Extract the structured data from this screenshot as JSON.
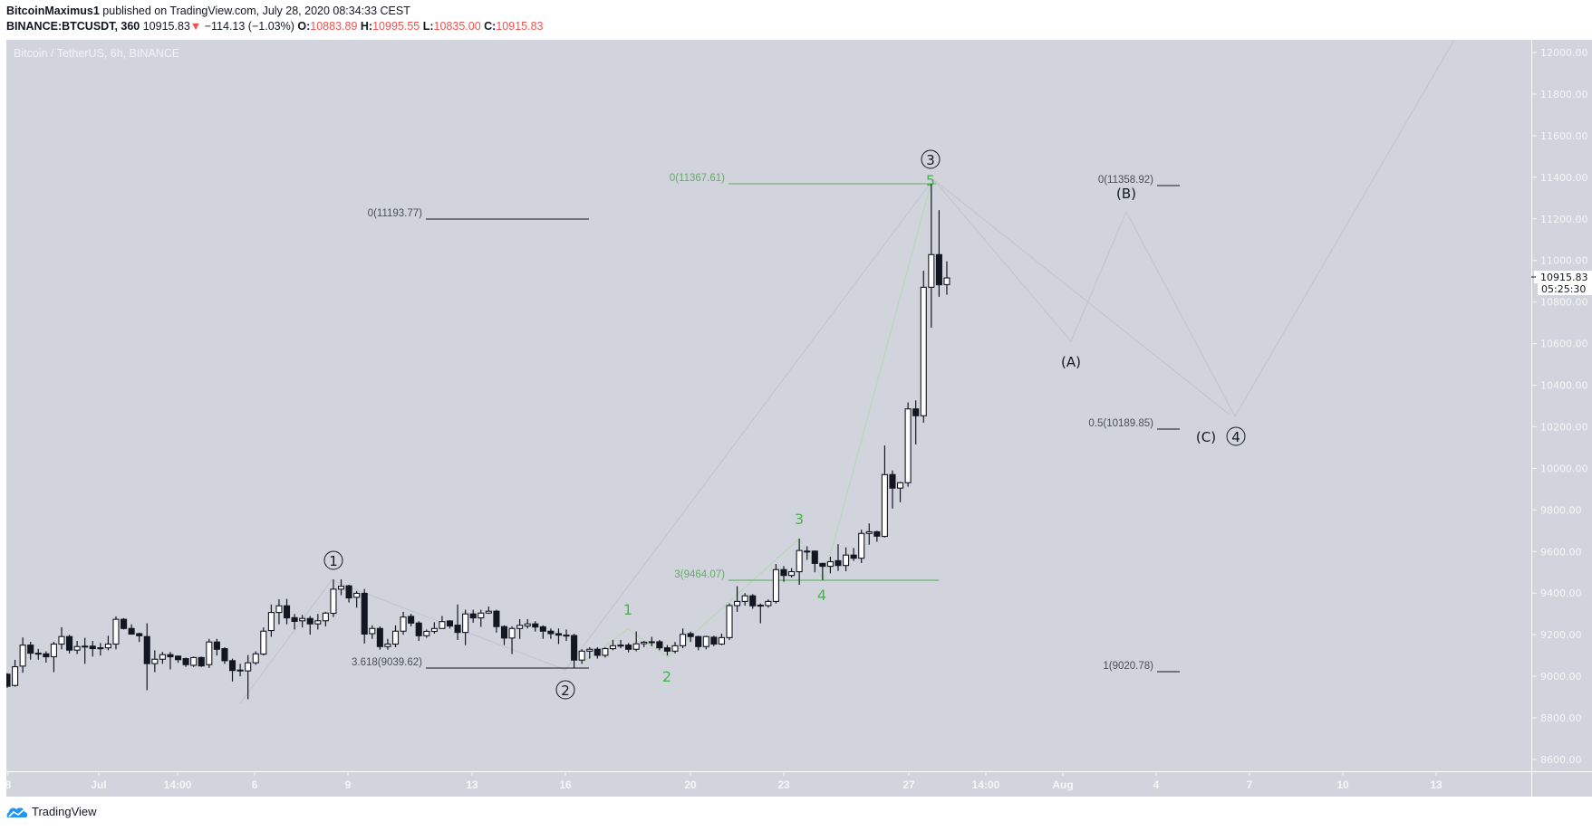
{
  "header": {
    "author": "BitcoinMaximus1",
    "published": "published on TradingView.com, July 28, 2020 08:34:33 CEST",
    "symbol": "BINANCE:BTCUSDT, 360",
    "last": "10915.83",
    "down_arrow": "▼",
    "change": "−114.13 (−1.03%)",
    "o_label": "O:",
    "o": "10883.89",
    "h_label": "H:",
    "h": "10995.55",
    "l_label": "L:",
    "l": "10835.00",
    "c_label": "C:",
    "c": "10915.83"
  },
  "chart_title": "Bitcoin / TetherUS, 6h, BINANCE",
  "footer": {
    "brand": "TradingView",
    "logo_icon": "tradingview-cloud-icon"
  },
  "colors": {
    "background": "#d1d4dc",
    "up": "#ffffff",
    "down": "#131722",
    "fib_green": "#4caf50",
    "wave_line": "#c3c6ce",
    "price_down": "#ef5350"
  },
  "price_axis": {
    "ticks": [
      "12000.00",
      "11800.00",
      "11600.00",
      "11400.00",
      "11200.00",
      "11000.00",
      "10800.00",
      "10600.00",
      "10400.00",
      "10200.00",
      "10000.00",
      "9800.00",
      "9600.00",
      "9400.00",
      "9200.00",
      "9000.00",
      "8800.00",
      "8600.00"
    ],
    "current_price": "10915.83",
    "countdown": "05:25:30"
  },
  "time_axis": {
    "ticks": [
      "8",
      "Jul",
      "14:00",
      "6",
      "9",
      "13",
      "16",
      "20",
      "23",
      "27",
      "14:00",
      "Aug",
      "4",
      "7",
      "10",
      "13"
    ]
  },
  "annotations": {
    "fib_left_top": "0(11193.77)",
    "fib_left_bottom": "3.618(9039.62)",
    "fib_green_top": "0(11367.61)",
    "fib_green_bottom": "3(9464.07)",
    "fib_right_top": "0(11358.92)",
    "fib_right_mid": "0.5(10189.85)",
    "fib_right_bottom": "1(9020.78)",
    "wave_1": "1",
    "wave_2": "2",
    "wave_3": "3",
    "wave_4": "4",
    "sub_1": "1",
    "sub_2": "2",
    "sub_3": "3",
    "sub_4": "4",
    "sub_5": "5",
    "wave_A": "(A)",
    "wave_B": "(B)",
    "wave_C": "(C)"
  },
  "chart_data": {
    "type": "candlestick",
    "interval": "6h",
    "first_bar": "Jun 28",
    "ylim": [
      8500,
      12100
    ],
    "ohlc": [
      [
        9010,
        9015,
        8945,
        8952
      ],
      [
        8956,
        9079,
        8950,
        9046
      ],
      [
        9049,
        9187,
        9017,
        9150
      ],
      [
        9150,
        9166,
        9080,
        9111
      ],
      [
        9111,
        9132,
        9080,
        9108
      ],
      [
        9108,
        9120,
        9066,
        9094
      ],
      [
        9094,
        9166,
        9020,
        9155
      ],
      [
        9155,
        9236,
        9130,
        9191
      ],
      [
        9191,
        9200,
        9110,
        9126
      ],
      [
        9126,
        9170,
        9107,
        9143
      ],
      [
        9143,
        9185,
        9060,
        9145
      ],
      [
        9145,
        9170,
        9095,
        9133
      ],
      [
        9133,
        9160,
        9100,
        9137
      ],
      [
        9137,
        9195,
        9125,
        9155
      ],
      [
        9155,
        9288,
        9130,
        9274
      ],
      [
        9274,
        9280,
        9225,
        9230
      ],
      [
        9230,
        9250,
        9200,
        9203
      ],
      [
        9205,
        9210,
        9165,
        9195
      ],
      [
        9191,
        9255,
        8933,
        9061
      ],
      [
        9061,
        9125,
        9020,
        9082
      ],
      [
        9082,
        9117,
        9060,
        9104
      ],
      [
        9104,
        9117,
        9033,
        9094
      ],
      [
        9097,
        9100,
        9065,
        9080
      ],
      [
        9085,
        9090,
        9045,
        9056
      ],
      [
        9053,
        9095,
        9045,
        9090
      ],
      [
        9090,
        9095,
        9045,
        9050
      ],
      [
        9056,
        9180,
        9040,
        9165
      ],
      [
        9165,
        9180,
        9100,
        9130
      ],
      [
        9133,
        9140,
        9060,
        9075
      ],
      [
        9075,
        9085,
        8975,
        9028
      ],
      [
        9030,
        9060,
        9000,
        9028
      ],
      [
        9026,
        9102,
        8890,
        9065
      ],
      [
        9065,
        9120,
        9055,
        9108
      ],
      [
        9107,
        9235,
        9100,
        9217
      ],
      [
        9220,
        9345,
        9190,
        9307
      ],
      [
        9307,
        9370,
        9250,
        9339
      ],
      [
        9339,
        9372,
        9250,
        9281
      ],
      [
        9282,
        9300,
        9225,
        9264
      ],
      [
        9267,
        9295,
        9235,
        9278
      ],
      [
        9278,
        9290,
        9200,
        9252
      ],
      [
        9252,
        9300,
        9225,
        9267
      ],
      [
        9267,
        9310,
        9240,
        9304
      ],
      [
        9303,
        9466,
        9285,
        9419
      ],
      [
        9419,
        9466,
        9390,
        9433
      ],
      [
        9435,
        9440,
        9355,
        9377
      ],
      [
        9380,
        9410,
        9330,
        9399
      ],
      [
        9399,
        9420,
        9158,
        9203
      ],
      [
        9205,
        9245,
        9180,
        9230
      ],
      [
        9230,
        9240,
        9128,
        9143
      ],
      [
        9143,
        9180,
        9128,
        9155
      ],
      [
        9155,
        9245,
        9140,
        9217
      ],
      [
        9217,
        9310,
        9200,
        9285
      ],
      [
        9288,
        9300,
        9240,
        9256
      ],
      [
        9256,
        9265,
        9170,
        9195
      ],
      [
        9195,
        9225,
        9185,
        9216
      ],
      [
        9216,
        9260,
        9205,
        9230
      ],
      [
        9230,
        9290,
        9228,
        9263
      ],
      [
        9266,
        9270,
        9230,
        9242
      ],
      [
        9246,
        9345,
        9175,
        9211
      ],
      [
        9211,
        9320,
        9150,
        9300
      ],
      [
        9300,
        9320,
        9258,
        9281
      ],
      [
        9281,
        9320,
        9238,
        9304
      ],
      [
        9304,
        9335,
        9300,
        9313
      ],
      [
        9313,
        9320,
        9210,
        9239
      ],
      [
        9239,
        9245,
        9150,
        9184
      ],
      [
        9184,
        9240,
        9107,
        9230
      ],
      [
        9230,
        9275,
        9180,
        9245
      ],
      [
        9242,
        9275,
        9230,
        9252
      ],
      [
        9252,
        9265,
        9215,
        9237
      ],
      [
        9238,
        9245,
        9180,
        9217
      ],
      [
        9217,
        9230,
        9180,
        9205
      ],
      [
        9205,
        9230,
        9155,
        9198
      ],
      [
        9198,
        9225,
        9170,
        9197
      ],
      [
        9196,
        9205,
        9040,
        9078
      ],
      [
        9078,
        9130,
        9060,
        9121
      ],
      [
        9121,
        9140,
        9085,
        9130
      ],
      [
        9130,
        9140,
        9085,
        9101
      ],
      [
        9101,
        9140,
        9090,
        9133
      ],
      [
        9133,
        9175,
        9125,
        9147
      ],
      [
        9150,
        9175,
        9135,
        9147
      ],
      [
        9150,
        9160,
        9115,
        9130
      ],
      [
        9130,
        9216,
        9120,
        9156
      ],
      [
        9157,
        9170,
        9140,
        9164
      ],
      [
        9165,
        9190,
        9145,
        9166
      ],
      [
        9166,
        9175,
        9125,
        9137
      ],
      [
        9137,
        9150,
        9100,
        9121
      ],
      [
        9121,
        9165,
        9110,
        9147
      ],
      [
        9147,
        9230,
        9135,
        9202
      ],
      [
        9205,
        9215,
        9165,
        9191
      ],
      [
        9191,
        9195,
        9125,
        9143
      ],
      [
        9143,
        9195,
        9130,
        9191
      ],
      [
        9188,
        9195,
        9145,
        9155
      ],
      [
        9155,
        9205,
        9150,
        9186
      ],
      [
        9186,
        9350,
        9175,
        9340
      ],
      [
        9340,
        9433,
        9310,
        9360
      ],
      [
        9360,
        9400,
        9340,
        9387
      ],
      [
        9387,
        9395,
        9325,
        9339
      ],
      [
        9342,
        9350,
        9255,
        9340
      ],
      [
        9340,
        9370,
        9330,
        9360
      ],
      [
        9360,
        9540,
        9350,
        9513
      ],
      [
        9513,
        9530,
        9455,
        9485
      ],
      [
        9485,
        9520,
        9475,
        9503
      ],
      [
        9503,
        9662,
        9440,
        9605
      ],
      [
        9602,
        9625,
        9560,
        9600
      ],
      [
        9602,
        9605,
        9500,
        9543
      ],
      [
        9543,
        9545,
        9463,
        9529
      ],
      [
        9529,
        9575,
        9495,
        9551
      ],
      [
        9556,
        9635,
        9507,
        9533
      ],
      [
        9533,
        9620,
        9505,
        9583
      ],
      [
        9583,
        9617,
        9555,
        9568
      ],
      [
        9568,
        9705,
        9545,
        9687
      ],
      [
        9687,
        9735,
        9633,
        9695
      ],
      [
        9695,
        9700,
        9647,
        9674
      ],
      [
        9673,
        10110,
        9668,
        9970
      ],
      [
        9970,
        9990,
        9807,
        9905
      ],
      [
        9905,
        9935,
        9837,
        9931
      ],
      [
        9931,
        10317,
        9912,
        10286
      ],
      [
        10286,
        10327,
        10115,
        10253
      ],
      [
        10253,
        10950,
        10220,
        10871
      ],
      [
        10871,
        11367,
        10677,
        11028
      ],
      [
        11028,
        11242,
        10825,
        10883
      ],
      [
        10883.89,
        10995.55,
        10835.0,
        10915.83
      ]
    ]
  }
}
